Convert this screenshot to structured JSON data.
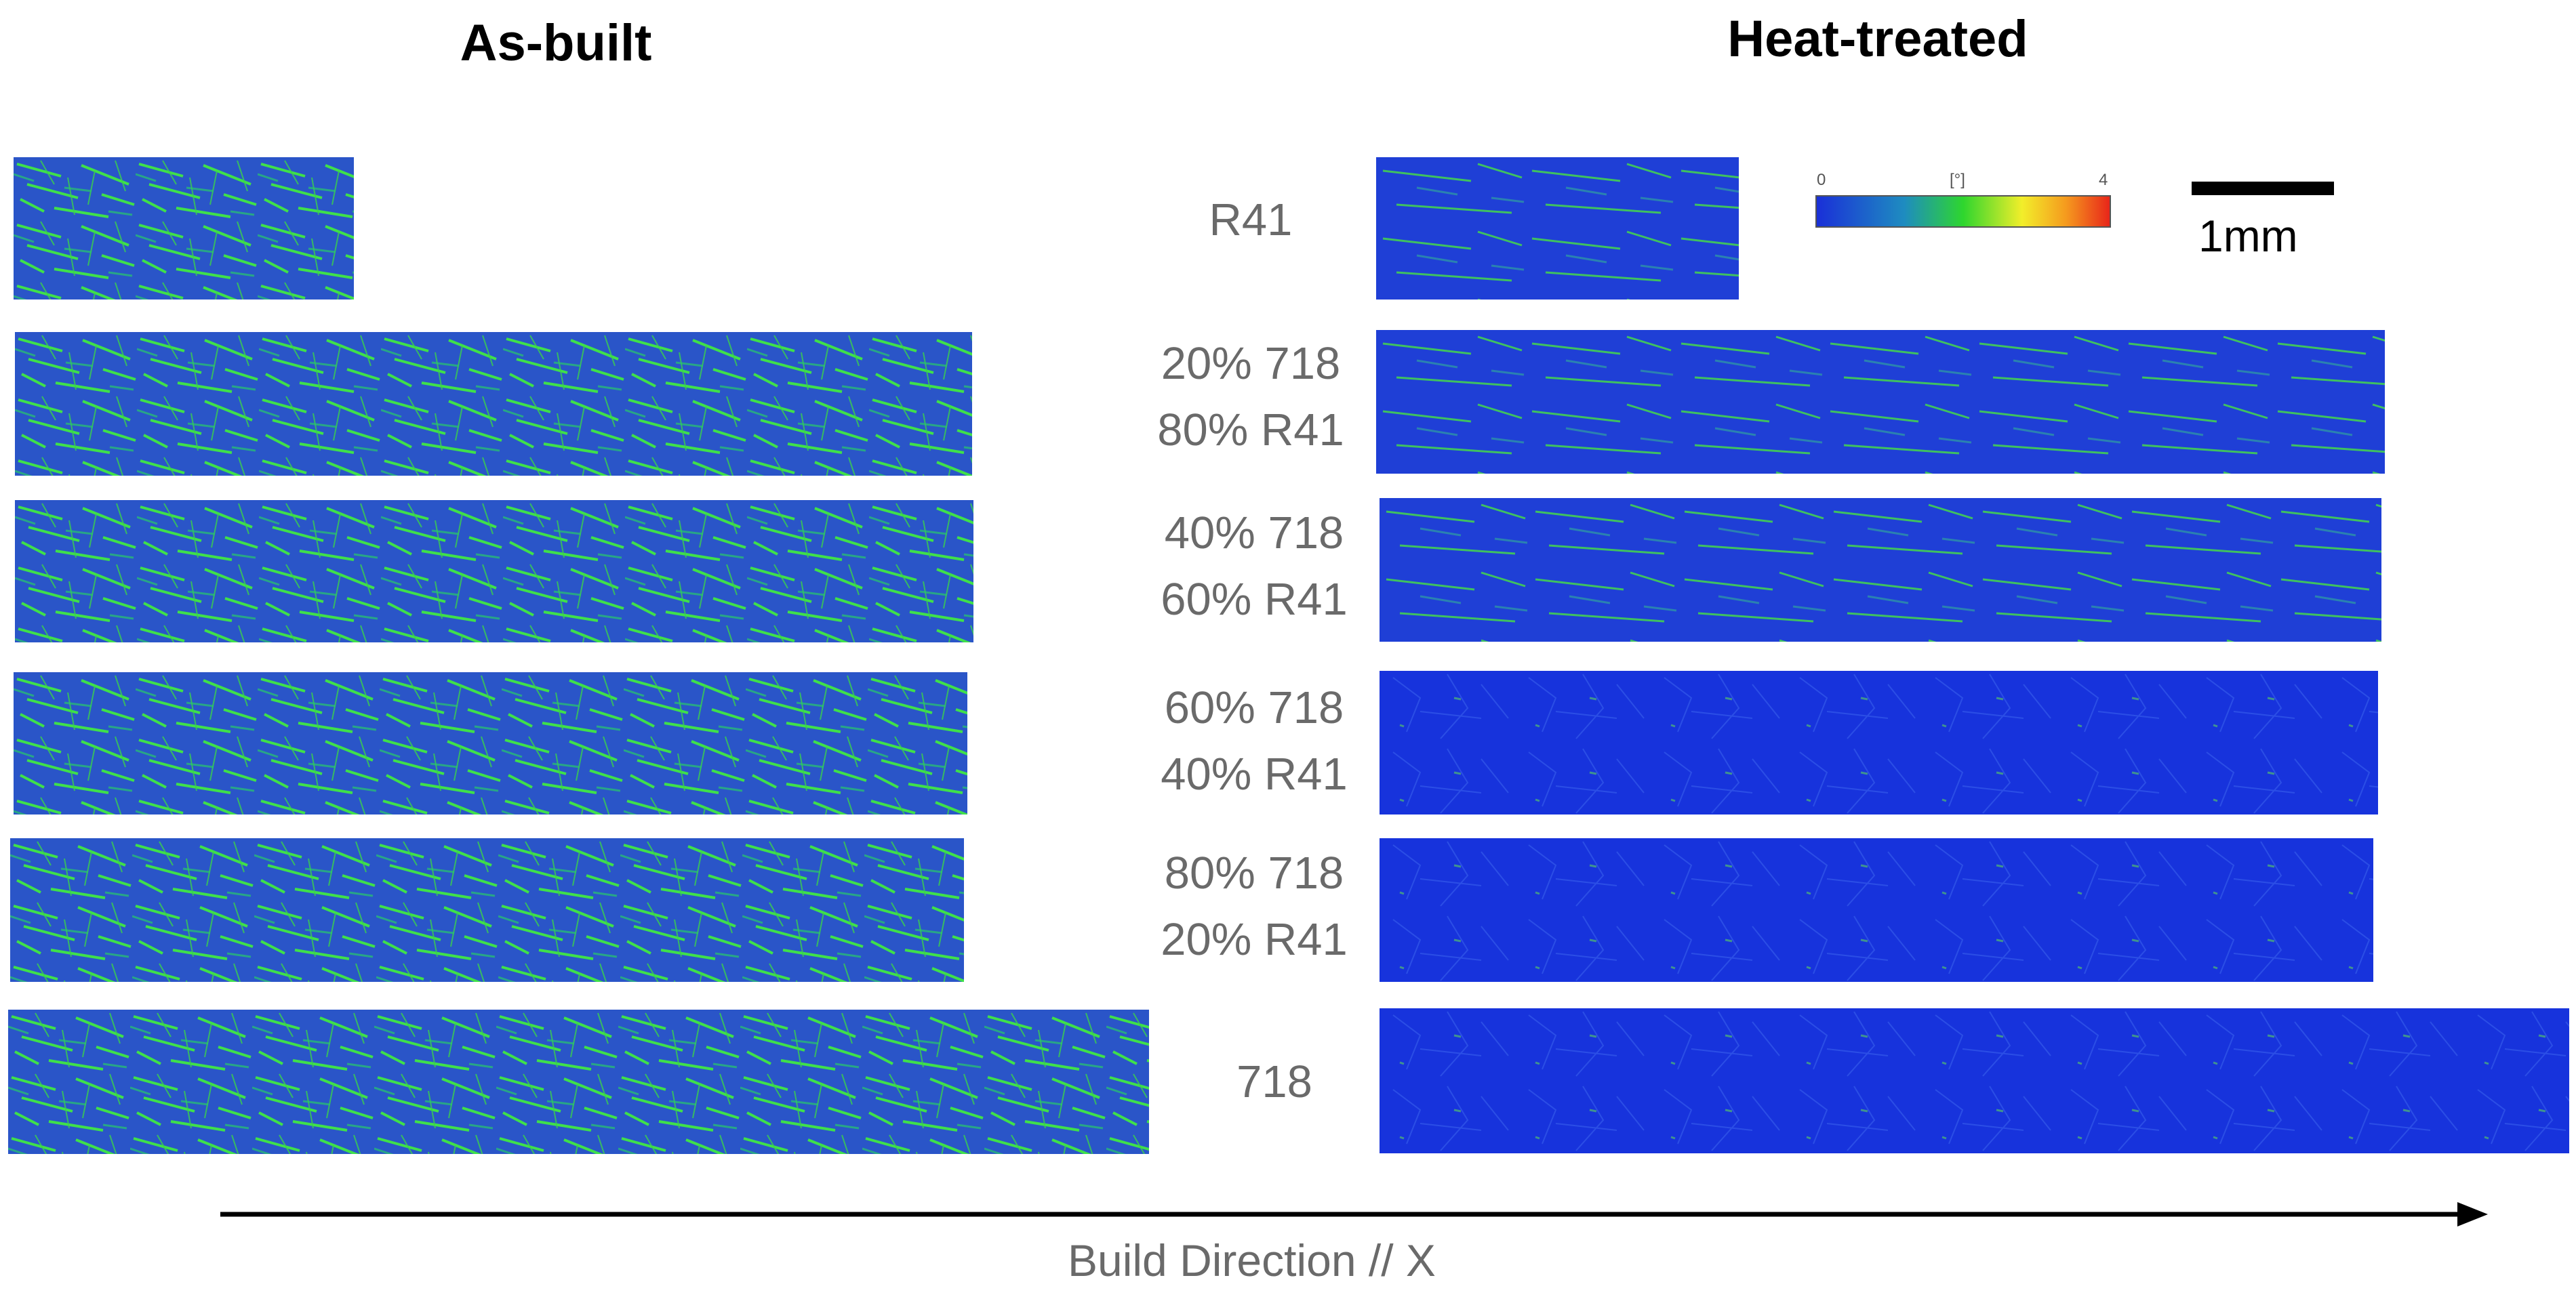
{
  "titles": {
    "left": "As-built",
    "right": "Heat-treated"
  },
  "rows": [
    {
      "label_line1": "R41",
      "label_line2": ""
    },
    {
      "label_line1": "20% 718",
      "label_line2": "80% R41"
    },
    {
      "label_line1": "40% 718",
      "label_line2": "60% R41"
    },
    {
      "label_line1": "60% 718",
      "label_line2": "40% R41"
    },
    {
      "label_line1": "80% 718",
      "label_line2": "20% R41"
    },
    {
      "label_line1": "718",
      "label_line2": ""
    }
  ],
  "colorbar": {
    "min_label": "0",
    "unit_label": "[°]",
    "max_label": "4"
  },
  "scale_bar": {
    "label": "1mm"
  },
  "axis": {
    "label": "Build Direction // X"
  },
  "colors": {
    "map_blue": "#1f3fd9",
    "map_green": "#3ce63a",
    "text_gray": "#6a6a6a"
  }
}
